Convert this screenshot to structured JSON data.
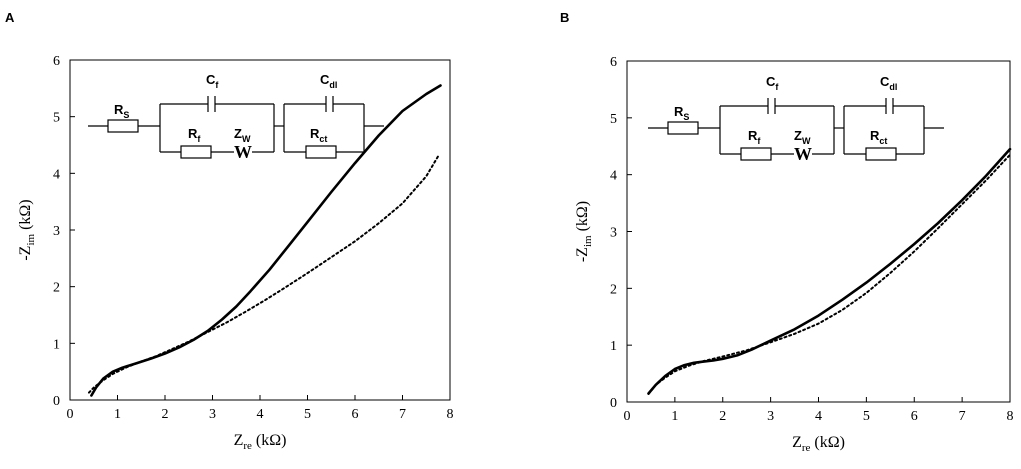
{
  "chart_data": [
    {
      "panel_label": "A",
      "type": "line",
      "xlabel": {
        "main": "Z",
        "sub": "re",
        "unit": "(kΩ)"
      },
      "ylabel": {
        "main": "-Z",
        "sub": "im",
        "unit": "(kΩ)"
      },
      "xlim": [
        0,
        8
      ],
      "ylim": [
        0,
        6
      ],
      "xticks": [
        "0",
        "1",
        "2",
        "3",
        "4",
        "5",
        "6",
        "7",
        "8"
      ],
      "yticks": [
        "0",
        "1",
        "2",
        "3",
        "4",
        "5",
        "6"
      ],
      "grid": false,
      "series": [
        {
          "style": "solid",
          "x": [
            0.45,
            0.55,
            0.7,
            0.9,
            1.1,
            1.4,
            1.7,
            2.0,
            2.3,
            2.6,
            2.9,
            3.2,
            3.5,
            3.8,
            4.2,
            4.6,
            5.0,
            5.5,
            6.0,
            6.5,
            7.0,
            7.5,
            7.8
          ],
          "y": [
            0.08,
            0.22,
            0.38,
            0.5,
            0.57,
            0.65,
            0.73,
            0.82,
            0.93,
            1.06,
            1.22,
            1.42,
            1.65,
            1.92,
            2.3,
            2.72,
            3.14,
            3.67,
            4.18,
            4.67,
            5.1,
            5.4,
            5.55
          ]
        },
        {
          "style": "dotted",
          "x": [
            0.4,
            0.5,
            0.7,
            0.9,
            1.2,
            1.5,
            1.8,
            2.1,
            2.5,
            2.9,
            3.3,
            3.7,
            4.1,
            4.5,
            5.0,
            5.5,
            6.0,
            6.5,
            7.0,
            7.5,
            7.75
          ],
          "y": [
            0.13,
            0.22,
            0.35,
            0.46,
            0.58,
            0.68,
            0.77,
            0.88,
            1.03,
            1.2,
            1.37,
            1.56,
            1.76,
            1.97,
            2.24,
            2.52,
            2.8,
            3.12,
            3.47,
            3.95,
            4.3
          ]
        }
      ]
    },
    {
      "panel_label": "B",
      "type": "line",
      "xlabel": {
        "main": "Z",
        "sub": "re",
        "unit": "(kΩ)"
      },
      "ylabel": {
        "main": "-Z",
        "sub": "im",
        "unit": "(kΩ)"
      },
      "xlim": [
        0,
        8
      ],
      "ylim": [
        0,
        6
      ],
      "xticks": [
        "0",
        "1",
        "2",
        "3",
        "4",
        "5",
        "6",
        "7",
        "8"
      ],
      "yticks": [
        "0",
        "1",
        "2",
        "3",
        "4",
        "5",
        "6"
      ],
      "grid": false,
      "series": [
        {
          "style": "solid",
          "x": [
            0.45,
            0.6,
            0.8,
            1.0,
            1.2,
            1.4,
            1.6,
            1.8,
            2.0,
            2.3,
            2.6,
            3.0,
            3.5,
            4.0,
            4.5,
            5.0,
            5.5,
            6.0,
            6.5,
            7.0,
            7.5,
            8.0
          ],
          "y": [
            0.15,
            0.3,
            0.46,
            0.58,
            0.65,
            0.69,
            0.71,
            0.73,
            0.76,
            0.82,
            0.92,
            1.08,
            1.28,
            1.52,
            1.8,
            2.1,
            2.43,
            2.78,
            3.15,
            3.55,
            3.98,
            4.45
          ]
        },
        {
          "style": "dotted",
          "x": [
            0.45,
            0.6,
            0.8,
            1.0,
            1.3,
            1.6,
            2.0,
            2.5,
            3.0,
            3.5,
            4.0,
            4.5,
            5.0,
            5.5,
            6.0,
            6.5,
            7.0,
            7.5,
            8.0
          ],
          "y": [
            0.14,
            0.3,
            0.43,
            0.54,
            0.64,
            0.72,
            0.8,
            0.91,
            1.05,
            1.2,
            1.38,
            1.62,
            1.92,
            2.27,
            2.65,
            3.06,
            3.48,
            3.9,
            4.35
          ]
        }
      ]
    }
  ],
  "circuit": {
    "labels": {
      "rs": {
        "main": "R",
        "sub": "S"
      },
      "cf": {
        "main": "C",
        "sub": "f"
      },
      "rf": {
        "main": "R",
        "sub": "f"
      },
      "zw": {
        "main": "Z",
        "sub": "W"
      },
      "cdl": {
        "main": "C",
        "sub": "dl"
      },
      "rct": {
        "main": "R",
        "sub": "ct"
      },
      "w": "W"
    }
  }
}
